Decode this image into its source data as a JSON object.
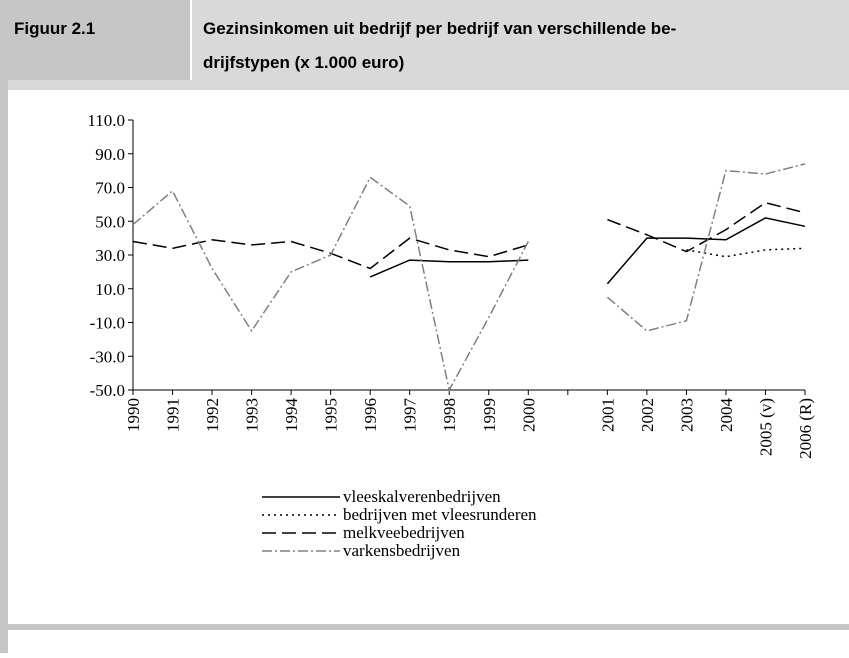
{
  "chart_data": {
    "type": "line",
    "figure_label": "Figuur 2.1",
    "title": [
      "Gezinsinkomen uit bedrijf per bedrijf van verschillende be-",
      "drijfstypen (x 1.000 euro)"
    ],
    "categories": [
      "1990",
      "1991",
      "1992",
      "1993",
      "1994",
      "1995",
      "1996",
      "1997",
      "1998",
      "1999",
      "2000",
      null,
      "2001",
      "2002",
      "2003",
      "2004",
      "2005 (v)",
      "2006 (R)"
    ],
    "series": [
      {
        "name": "vleeskalverenbedrijven",
        "color": "#000000",
        "dash": "solid",
        "values": [
          null,
          null,
          null,
          null,
          null,
          null,
          17,
          27,
          26,
          26,
          27,
          null,
          13,
          40,
          40,
          39,
          52,
          47
        ]
      },
      {
        "name": "bedrijven met vleesrunderen",
        "color": "#000000",
        "dash": "dotted",
        "values": [
          null,
          null,
          null,
          null,
          null,
          null,
          null,
          null,
          null,
          null,
          null,
          null,
          null,
          null,
          33,
          29,
          33,
          34
        ]
      },
      {
        "name": "melkveebedrijven",
        "color": "#000000",
        "dash": "dashed",
        "values": [
          38,
          34,
          39,
          36,
          38,
          31,
          22,
          40,
          33,
          29,
          36,
          null,
          51,
          42,
          32,
          45,
          61,
          55
        ]
      },
      {
        "name": "varkensbedrijven",
        "color": "#808080",
        "dash": "dashdot",
        "values": [
          48,
          68,
          22,
          -15,
          20,
          30,
          76,
          59,
          -50,
          -7,
          38,
          null,
          5,
          -15,
          -9,
          80,
          78,
          84
        ]
      }
    ],
    "ylim": [
      -50,
      110
    ],
    "yticks": [
      {
        "value": 110,
        "label": "110.0"
      },
      {
        "value": 90,
        "label": "90.0"
      },
      {
        "value": 70,
        "label": "70.0"
      },
      {
        "value": 50,
        "label": "50.0"
      },
      {
        "value": 30,
        "label": "30.0"
      },
      {
        "value": 10,
        "label": "10.0"
      },
      {
        "value": -10,
        "label": "-10.0"
      },
      {
        "value": -30,
        "label": "-30.0"
      },
      {
        "value": -50,
        "label": "-50.0"
      }
    ]
  }
}
